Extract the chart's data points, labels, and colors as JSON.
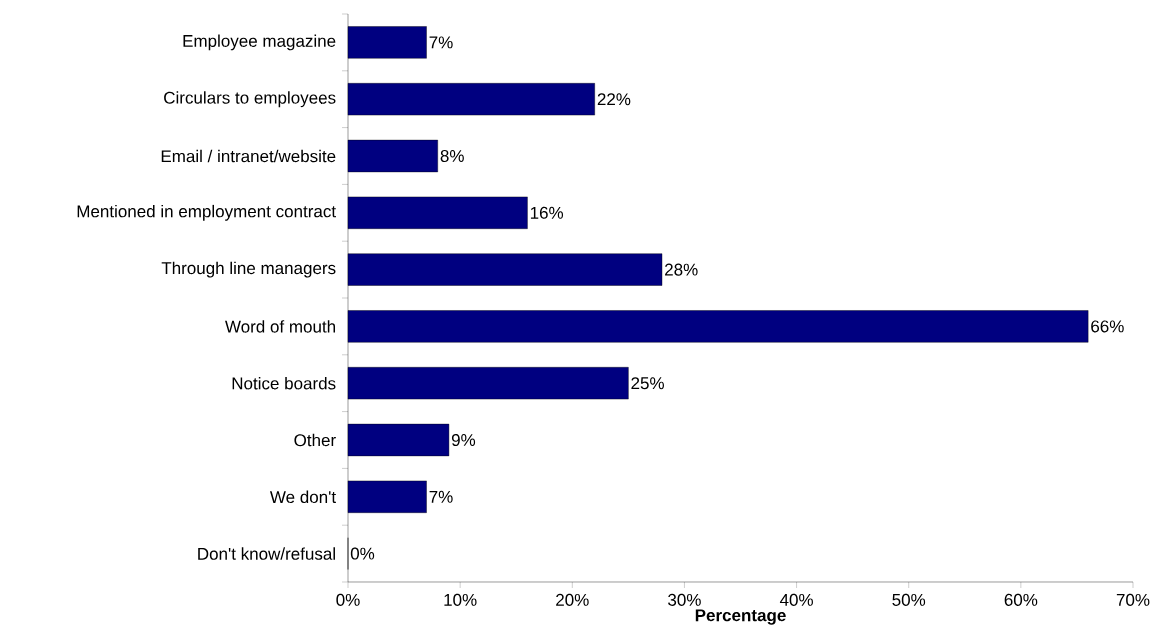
{
  "chart_data": {
    "type": "bar",
    "orientation": "horizontal",
    "xlabel": "Percentage",
    "categories": [
      "Employee magazine",
      "Circulars to employees",
      "Email / intranet/website",
      "Mentioned in employment contract",
      "Through line managers",
      "Word of mouth",
      "Notice boards",
      "Other",
      "We don't",
      "Don't know/refusal"
    ],
    "values": [
      7,
      22,
      8,
      16,
      28,
      66,
      25,
      9,
      7,
      0
    ],
    "value_labels": [
      "7%",
      "22%",
      "8%",
      "16%",
      "28%",
      "66%",
      "25%",
      "9%",
      "7%",
      "0%"
    ],
    "color": "#000080",
    "xlim": [
      0,
      70
    ],
    "xticks": [
      {
        "value": 0,
        "label": "0%"
      },
      {
        "value": 10,
        "label": "10%"
      },
      {
        "value": 20,
        "label": "20%"
      },
      {
        "value": 30,
        "label": "30%"
      },
      {
        "value": 40,
        "label": "40%"
      },
      {
        "value": 50,
        "label": "50%"
      },
      {
        "value": 60,
        "label": "60%"
      },
      {
        "value": 70,
        "label": "70%"
      }
    ],
    "grid": false
  }
}
